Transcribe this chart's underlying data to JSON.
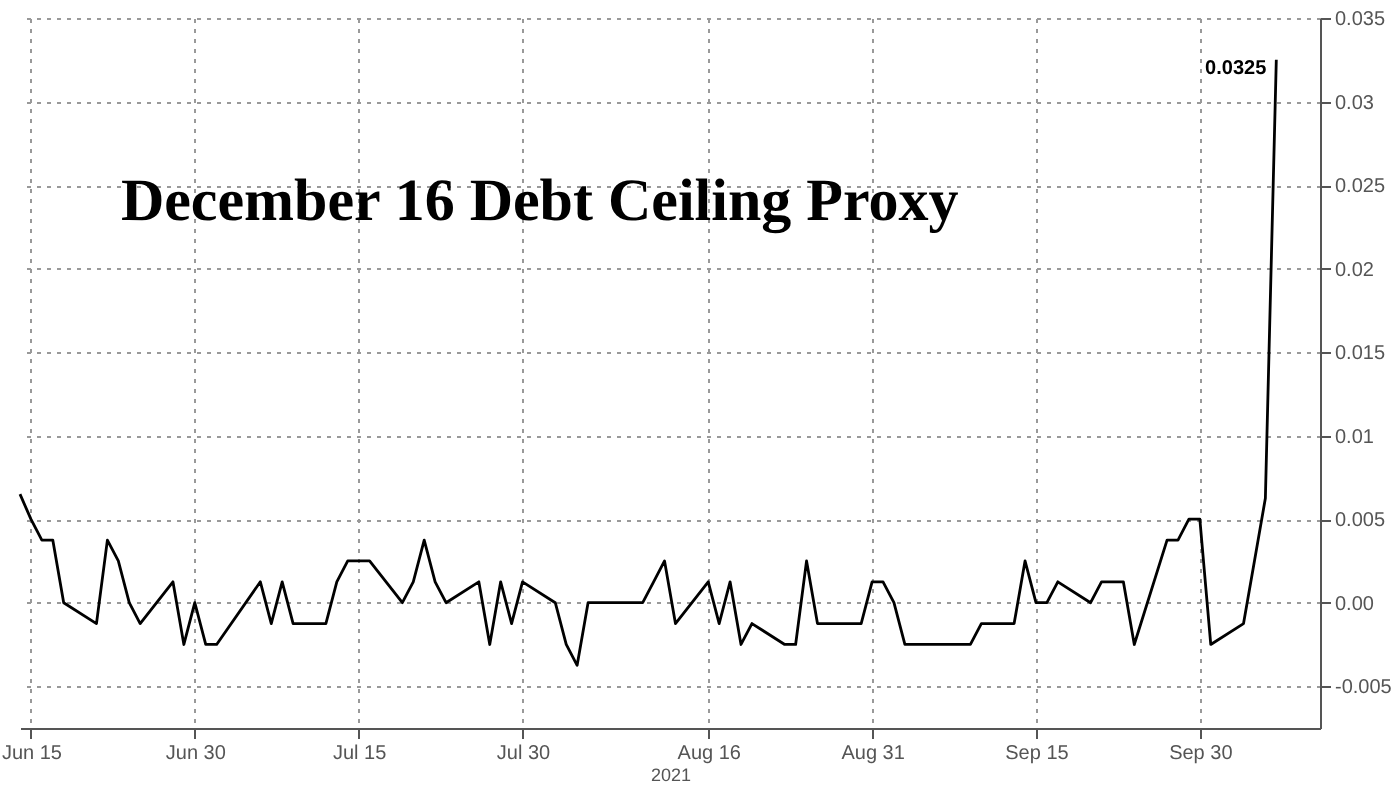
{
  "chart_data": {
    "type": "line",
    "title": "December 16 Debt Ceiling Proxy",
    "xlabel": "2021",
    "x": [
      "2021-06-14",
      "2021-06-15",
      "2021-06-16",
      "2021-06-17",
      "2021-06-18",
      "2021-06-21",
      "2021-06-22",
      "2021-06-23",
      "2021-06-24",
      "2021-06-25",
      "2021-06-28",
      "2021-06-29",
      "2021-06-30",
      "2021-07-01",
      "2021-07-02",
      "2021-07-06",
      "2021-07-07",
      "2021-07-08",
      "2021-07-09",
      "2021-07-12",
      "2021-07-13",
      "2021-07-14",
      "2021-07-15",
      "2021-07-16",
      "2021-07-19",
      "2021-07-20",
      "2021-07-21",
      "2021-07-22",
      "2021-07-23",
      "2021-07-26",
      "2021-07-27",
      "2021-07-28",
      "2021-07-29",
      "2021-07-30",
      "2021-08-02",
      "2021-08-03",
      "2021-08-04",
      "2021-08-05",
      "2021-08-06",
      "2021-08-09",
      "2021-08-10",
      "2021-08-11",
      "2021-08-12",
      "2021-08-13",
      "2021-08-16",
      "2021-08-17",
      "2021-08-18",
      "2021-08-19",
      "2021-08-20",
      "2021-08-23",
      "2021-08-24",
      "2021-08-25",
      "2021-08-26",
      "2021-08-27",
      "2021-08-30",
      "2021-08-31",
      "2021-09-01",
      "2021-09-02",
      "2021-09-03",
      "2021-09-07",
      "2021-09-08",
      "2021-09-09",
      "2021-09-10",
      "2021-09-13",
      "2021-09-14",
      "2021-09-15",
      "2021-09-16",
      "2021-09-17",
      "2021-09-20",
      "2021-09-21",
      "2021-09-22",
      "2021-09-23",
      "2021-09-24",
      "2021-09-27",
      "2021-09-28",
      "2021-09-29",
      "2021-09-30",
      "2021-10-01",
      "2021-10-04",
      "2021-10-05",
      "2021-10-06",
      "2021-10-07"
    ],
    "series": [
      {
        "color": "#000000",
        "values": [
          0.0065,
          0.005,
          0.00375,
          0.00375,
          0,
          -0.00125,
          0.00375,
          0.0025,
          0,
          -0.00125,
          0.00125,
          -0.0025,
          0,
          -0.0025,
          -0.0025,
          0.00125,
          -0.00125,
          0.00125,
          -0.00125,
          -0.00125,
          0.00125,
          0.0025,
          0.0025,
          0.0025,
          0,
          0.00125,
          0.00375,
          0.00125,
          0,
          0.00125,
          -0.0025,
          0.00125,
          -0.00125,
          0.00125,
          0,
          -0.0025,
          -0.00375,
          0,
          0,
          0,
          0,
          0.00125,
          0.0025,
          -0.00125,
          0.00125,
          -0.00125,
          0.00125,
          -0.0025,
          -0.00125,
          -0.0025,
          -0.0025,
          0.0025,
          -0.00125,
          -0.00125,
          -0.00125,
          0.00125,
          0.00125,
          0,
          -0.0025,
          -0.0025,
          -0.0025,
          -0.0025,
          -0.00125,
          -0.00125,
          0.0025,
          0,
          0,
          0.00125,
          0,
          0.00125,
          0.00125,
          0.00125,
          -0.0025,
          0.00375,
          0.00375,
          0.005,
          0.005,
          -0.0025,
          -0.00125,
          0.0025,
          0.00625,
          0.0325
        ],
        "value_labels": [
          null,
          null,
          null,
          null,
          null,
          null,
          null,
          null,
          null,
          null,
          null,
          null,
          null,
          null,
          null,
          null,
          null,
          null,
          null,
          null,
          null,
          null,
          null,
          null,
          null,
          null,
          null,
          null,
          null,
          null,
          null,
          null,
          null,
          null,
          null,
          null,
          null,
          null,
          null,
          null,
          null,
          null,
          null,
          null,
          null,
          null,
          null,
          null,
          null,
          null,
          null,
          null,
          null,
          null,
          null,
          null,
          null,
          null,
          null,
          null,
          null,
          null,
          null,
          null,
          null,
          null,
          null,
          null,
          null,
          null,
          null,
          null,
          null,
          null,
          null,
          null,
          null,
          null,
          null,
          null,
          null,
          "0.0325"
        ]
      }
    ],
    "xlim": [
      "2021-06-14",
      "2021-10-11"
    ],
    "xticks": [
      {
        "value": "2021-06-15",
        "label": "Jun 15"
      },
      {
        "value": "2021-06-30",
        "label": "Jun 30"
      },
      {
        "value": "2021-07-15",
        "label": "Jul 15"
      },
      {
        "value": "2021-07-30",
        "label": "Jul 30"
      },
      {
        "value": "2021-08-16",
        "label": "Aug 16"
      },
      {
        "value": "2021-08-31",
        "label": "Aug 31"
      },
      {
        "value": "2021-09-15",
        "label": "Sep 15"
      },
      {
        "value": "2021-09-30",
        "label": "Sep 30"
      }
    ],
    "ylim": [
      -0.0075,
      0.035
    ],
    "yticks": [
      -0.005,
      {
        "value": 0,
        "label": "0.00"
      },
      0.005,
      0.01,
      0.015,
      0.02,
      0.025,
      0.03,
      0.035
    ],
    "grid": true,
    "marker": "none",
    "line_style": "solid"
  }
}
